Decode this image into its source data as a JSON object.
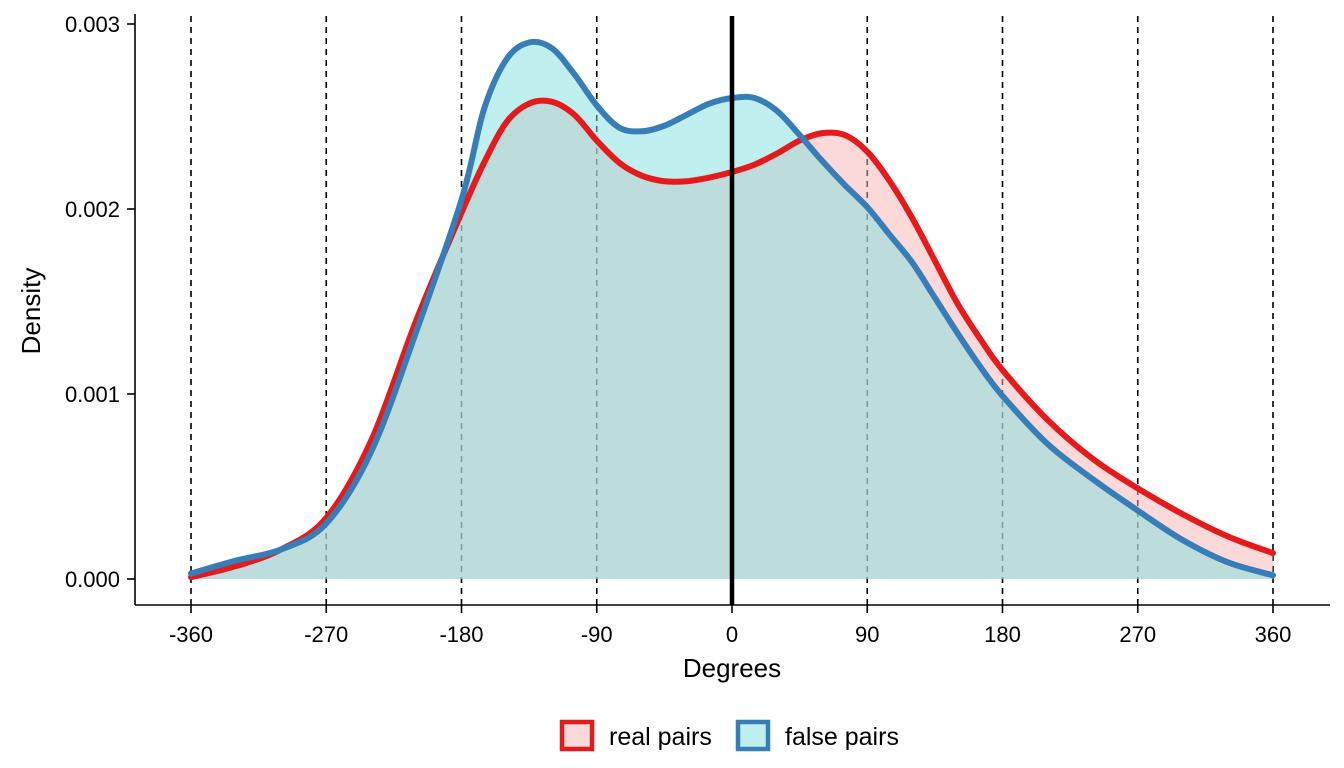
{
  "chart_data": {
    "type": "area",
    "xlabel": "Degrees",
    "ylabel": "Density",
    "xlim": [
      -360,
      360
    ],
    "ylim": [
      0,
      0.003
    ],
    "xticks": [
      -360,
      -270,
      -180,
      -90,
      0,
      90,
      180,
      270,
      360
    ],
    "xtick_labels": [
      "-360",
      "-270",
      "-180",
      "-90",
      "0",
      "90",
      "180",
      "270",
      "360"
    ],
    "yticks": [
      0,
      0.001,
      0.002,
      0.003
    ],
    "ytick_labels": [
      "0.000",
      "0.001",
      "0.002",
      "0.003"
    ],
    "reference_lines": {
      "dashed_x": [
        -360,
        -270,
        -180,
        -90,
        90,
        180,
        270,
        360
      ],
      "solid_x": [
        0
      ]
    },
    "grid": false,
    "legend_position": "bottom",
    "series": [
      {
        "name": "real pairs",
        "line_color": "#e41a1c",
        "fill_color": "#f8b4b4",
        "x": [
          -360,
          -330,
          -300,
          -270,
          -240,
          -210,
          -180,
          -165,
          -150,
          -135,
          -120,
          -105,
          -90,
          -75,
          -60,
          -45,
          -30,
          -15,
          0,
          15,
          30,
          45,
          60,
          75,
          90,
          105,
          120,
          135,
          150,
          165,
          180,
          210,
          240,
          270,
          300,
          330,
          360
        ],
        "y": [
          1e-05,
          7e-05,
          0.00016,
          0.00033,
          0.00075,
          0.0014,
          0.00198,
          0.00225,
          0.00247,
          0.00257,
          0.00258,
          0.00251,
          0.00237,
          0.00225,
          0.00218,
          0.00215,
          0.00215,
          0.00217,
          0.0022,
          0.00224,
          0.0023,
          0.00237,
          0.00241,
          0.0024,
          0.00231,
          0.00215,
          0.00195,
          0.00172,
          0.00149,
          0.0013,
          0.00113,
          0.00086,
          0.00065,
          0.00049,
          0.00035,
          0.00023,
          0.00014
        ]
      },
      {
        "name": "false pairs",
        "line_color": "#377eb8",
        "fill_color": "#7fdfe0",
        "x": [
          -360,
          -330,
          -300,
          -270,
          -240,
          -210,
          -180,
          -165,
          -150,
          -135,
          -120,
          -105,
          -90,
          -75,
          -60,
          -45,
          -30,
          -15,
          0,
          15,
          30,
          45,
          60,
          75,
          90,
          105,
          120,
          135,
          150,
          165,
          180,
          210,
          240,
          270,
          300,
          330,
          360
        ],
        "y": [
          3e-05,
          0.0001,
          0.00016,
          0.0003,
          0.00069,
          0.00134,
          0.00205,
          0.00254,
          0.00281,
          0.0029,
          0.00287,
          0.00273,
          0.00256,
          0.00244,
          0.00242,
          0.00245,
          0.00251,
          0.00257,
          0.0026,
          0.0026,
          0.00253,
          0.0024,
          0.00226,
          0.00213,
          0.00201,
          0.00186,
          0.00171,
          0.00152,
          0.00133,
          0.00115,
          0.00099,
          0.00073,
          0.00054,
          0.00037,
          0.00021,
          9e-05,
          2e-05
        ]
      }
    ]
  }
}
